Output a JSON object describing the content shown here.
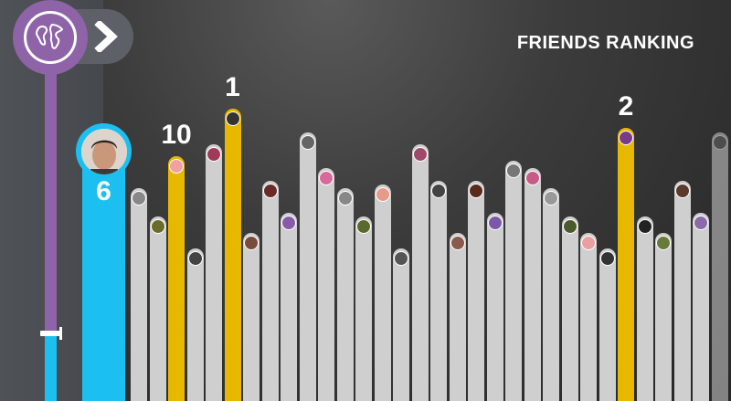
{
  "header": {
    "title": "FRIENDS RANKING"
  },
  "colors": {
    "purple": "#8e63a8",
    "blue": "#1cc0f0",
    "gold": "#e6b800",
    "grey": "#cfcfcf"
  },
  "icons": {
    "globe": "globe-icon",
    "next": "chevron-right-icon"
  },
  "player": {
    "rank": "6",
    "progress_fraction": 0.16
  },
  "friends": [
    {
      "height": 0.53,
      "kind": "grey",
      "avatar": "#888888"
    },
    {
      "height": 0.46,
      "kind": "grey",
      "avatar": "#6b6b2a"
    },
    {
      "height": 0.61,
      "kind": "gold",
      "avatar": "#f3a0a0",
      "rank": "10"
    },
    {
      "height": 0.38,
      "kind": "grey",
      "avatar": "#444444"
    },
    {
      "height": 0.64,
      "kind": "grey",
      "avatar": "#a03a5a"
    },
    {
      "height": 0.73,
      "kind": "gold",
      "avatar": "#333333",
      "rank": "1"
    },
    {
      "height": 0.42,
      "kind": "grey",
      "avatar": "#7a4a3a"
    },
    {
      "height": 0.55,
      "kind": "grey",
      "avatar": "#6b2a2a"
    },
    {
      "height": 0.47,
      "kind": "grey",
      "avatar": "#8a5aa8"
    },
    {
      "height": 0.67,
      "kind": "grey",
      "avatar": "#666666"
    },
    {
      "height": 0.58,
      "kind": "grey",
      "avatar": "#d86a9a"
    },
    {
      "height": 0.53,
      "kind": "grey",
      "avatar": "#888888"
    },
    {
      "height": 0.46,
      "kind": "grey",
      "avatar": "#5a6a2a"
    },
    {
      "height": 0.54,
      "kind": "grey",
      "avatar": "#e89a8a"
    },
    {
      "height": 0.38,
      "kind": "grey",
      "avatar": "#555555"
    },
    {
      "height": 0.64,
      "kind": "grey",
      "avatar": "#a04a6a"
    },
    {
      "height": 0.55,
      "kind": "grey",
      "avatar": "#444444"
    },
    {
      "height": 0.42,
      "kind": "grey",
      "avatar": "#8a5a4a"
    },
    {
      "height": 0.55,
      "kind": "grey",
      "avatar": "#5a2a1a"
    },
    {
      "height": 0.47,
      "kind": "grey",
      "avatar": "#7a5aa8"
    },
    {
      "height": 0.6,
      "kind": "grey",
      "avatar": "#777777"
    },
    {
      "height": 0.58,
      "kind": "grey",
      "avatar": "#c85a8a"
    },
    {
      "height": 0.53,
      "kind": "grey",
      "avatar": "#999999"
    },
    {
      "height": 0.46,
      "kind": "grey",
      "avatar": "#4a5a2a"
    },
    {
      "height": 0.42,
      "kind": "grey",
      "avatar": "#e8a0a0"
    },
    {
      "height": 0.38,
      "kind": "grey",
      "avatar": "#333333"
    },
    {
      "height": 0.68,
      "kind": "gold",
      "avatar": "#7a3a8a",
      "rank": "2"
    },
    {
      "height": 0.46,
      "kind": "grey",
      "avatar": "#222222"
    },
    {
      "height": 0.42,
      "kind": "grey",
      "avatar": "#6a7a3a"
    },
    {
      "height": 0.55,
      "kind": "grey",
      "avatar": "#5a3a2a"
    },
    {
      "height": 0.47,
      "kind": "grey",
      "avatar": "#8a6aa8"
    },
    {
      "height": 0.67,
      "kind": "grey",
      "avatar": "#666666"
    }
  ]
}
